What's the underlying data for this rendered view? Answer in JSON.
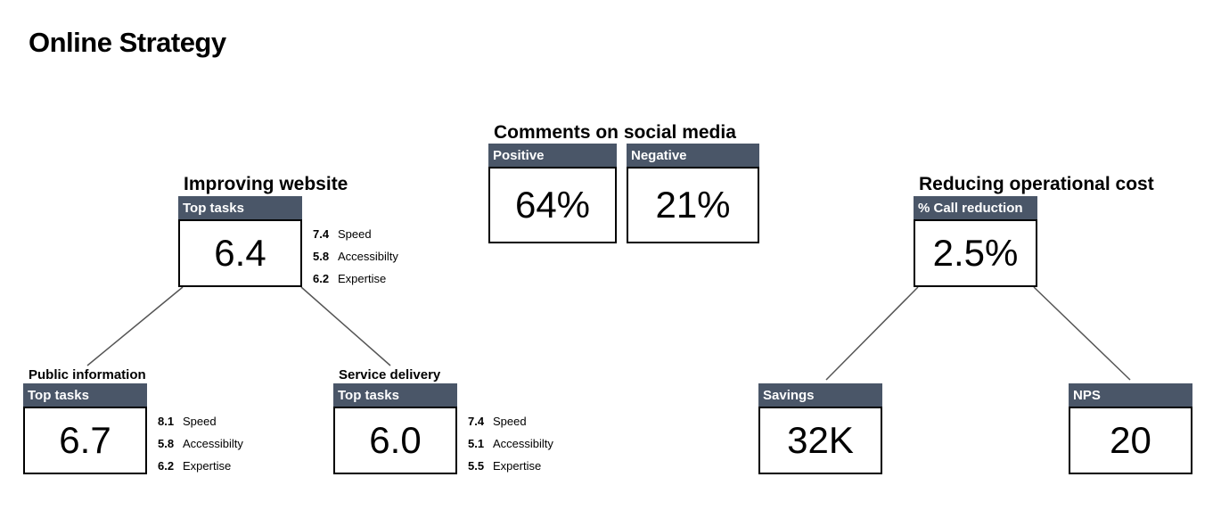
{
  "title": "Online Strategy",
  "social": {
    "title": "Comments on social media",
    "positive": {
      "label": "Positive",
      "value": "64%"
    },
    "negative": {
      "label": "Negative",
      "value": "21%"
    }
  },
  "website": {
    "title": "Improving website",
    "header": "Top tasks",
    "value": "6.4",
    "metrics": [
      {
        "value": "7.4",
        "label": "Speed"
      },
      {
        "value": "5.8",
        "label": "Accessibilty"
      },
      {
        "value": "6.2",
        "label": "Expertise"
      }
    ]
  },
  "public_info": {
    "title": "Public information",
    "header": "Top tasks",
    "value": "6.7",
    "metrics": [
      {
        "value": "8.1",
        "label": "Speed"
      },
      {
        "value": "5.8",
        "label": "Accessibilty"
      },
      {
        "value": "6.2",
        "label": "Expertise"
      }
    ]
  },
  "service": {
    "title": "Service delivery",
    "header": "Top tasks",
    "value": "6.0",
    "metrics": [
      {
        "value": "7.4",
        "label": "Speed"
      },
      {
        "value": "5.1",
        "label": "Accessibilty"
      },
      {
        "value": "5.5",
        "label": "Expertise"
      }
    ]
  },
  "cost": {
    "title": "Reducing operational cost",
    "header": "% Call reduction",
    "value": "2.5%"
  },
  "savings": {
    "header": "Savings",
    "value": "32K"
  },
  "nps": {
    "header": "NPS",
    "value": "20"
  },
  "colors": {
    "header_bg": "#4a5668",
    "border": "#000000",
    "connector": "#555555"
  }
}
